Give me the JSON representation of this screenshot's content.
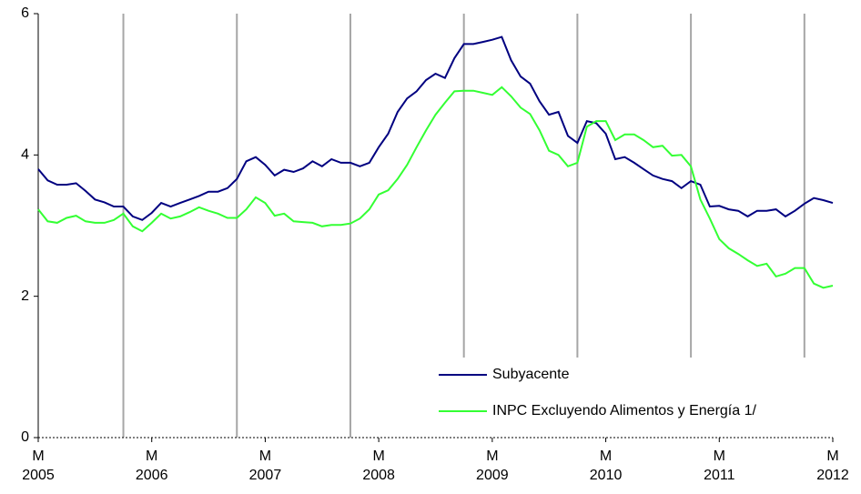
{
  "chart_data": {
    "type": "line",
    "categories": [
      {
        "month": "M",
        "year": "2005"
      },
      null,
      null,
      null,
      null,
      null,
      null,
      null,
      null,
      null,
      null,
      null,
      {
        "month": "M",
        "year": "2006"
      },
      null,
      null,
      null,
      null,
      null,
      null,
      null,
      null,
      null,
      null,
      null,
      {
        "month": "M",
        "year": "2007"
      },
      null,
      null,
      null,
      null,
      null,
      null,
      null,
      null,
      null,
      null,
      null,
      {
        "month": "M",
        "year": "2008"
      },
      null,
      null,
      null,
      null,
      null,
      null,
      null,
      null,
      null,
      null,
      null,
      {
        "month": "M",
        "year": "2009"
      },
      null,
      null,
      null,
      null,
      null,
      null,
      null,
      null,
      null,
      null,
      null,
      {
        "month": "M",
        "year": "2010"
      },
      null,
      null,
      null,
      null,
      null,
      null,
      null,
      null,
      null,
      null,
      null,
      {
        "month": "M",
        "year": "2011"
      },
      null,
      null,
      null,
      null,
      null,
      null,
      null,
      null,
      null,
      null,
      null,
      {
        "month": "M",
        "year": "2012"
      }
    ],
    "series": [
      {
        "name": "Subyacente",
        "color": "#000080",
        "values": [
          3.8,
          3.64,
          3.58,
          3.58,
          3.6,
          3.49,
          3.37,
          3.33,
          3.27,
          3.27,
          3.13,
          3.08,
          3.18,
          3.32,
          3.27,
          3.32,
          3.37,
          3.42,
          3.48,
          3.48,
          3.53,
          3.66,
          3.91,
          3.97,
          3.86,
          3.71,
          3.79,
          3.76,
          3.81,
          3.91,
          3.84,
          3.94,
          3.89,
          3.89,
          3.84,
          3.89,
          4.11,
          4.3,
          4.61,
          4.8,
          4.9,
          5.06,
          5.15,
          5.09,
          5.37,
          5.57,
          5.57,
          5.6,
          5.63,
          5.67,
          5.34,
          5.11,
          5.01,
          4.76,
          4.57,
          4.61,
          4.27,
          4.17,
          4.48,
          4.45,
          4.3,
          3.94,
          3.97,
          3.89,
          3.8,
          3.71,
          3.66,
          3.63,
          3.53,
          3.63,
          3.58,
          3.27,
          3.28,
          3.23,
          3.21,
          3.13,
          3.21,
          3.21,
          3.23,
          3.13,
          3.21,
          3.31,
          3.39,
          3.36,
          3.32
        ]
      },
      {
        "name": "INPC Excluyendo Alimentos y Energía 1/",
        "color": "#33ff33",
        "values": [
          3.23,
          3.06,
          3.04,
          3.11,
          3.14,
          3.06,
          3.04,
          3.04,
          3.08,
          3.17,
          2.99,
          2.92,
          3.04,
          3.17,
          3.1,
          3.13,
          3.19,
          3.26,
          3.21,
          3.17,
          3.11,
          3.11,
          3.23,
          3.4,
          3.32,
          3.14,
          3.17,
          3.06,
          3.05,
          3.04,
          2.99,
          3.01,
          3.01,
          3.03,
          3.1,
          3.23,
          3.44,
          3.5,
          3.66,
          3.86,
          4.11,
          4.35,
          4.57,
          4.74,
          4.9,
          4.91,
          4.91,
          4.88,
          4.85,
          4.96,
          4.83,
          4.67,
          4.58,
          4.35,
          4.06,
          4.0,
          3.84,
          3.89,
          4.4,
          4.48,
          4.48,
          4.21,
          4.29,
          4.29,
          4.21,
          4.11,
          4.13,
          3.99,
          4.0,
          3.84,
          3.37,
          3.1,
          2.81,
          2.68,
          2.6,
          2.51,
          2.43,
          2.46,
          2.28,
          2.32,
          2.4,
          2.4,
          2.18,
          2.12,
          2.15
        ]
      }
    ],
    "ylim": [
      0,
      6
    ],
    "yticks": [
      0,
      2,
      4,
      6
    ],
    "legend": "lower right"
  }
}
